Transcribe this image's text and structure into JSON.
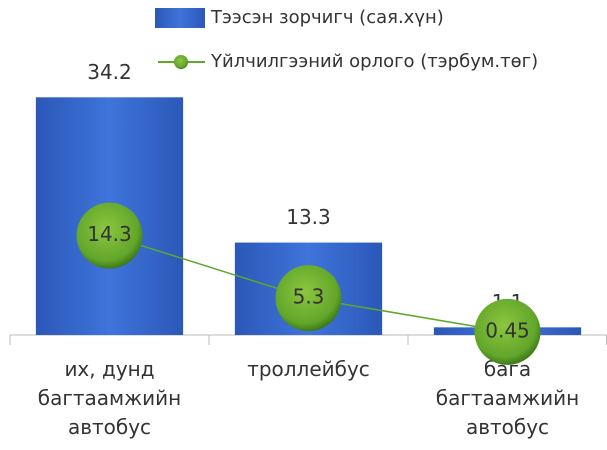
{
  "chart_data": {
    "type": "bar-line",
    "categories": [
      "их, дунд багтаамжийн автобус",
      "троллейбус",
      "бага багтаамжийн автобус"
    ],
    "series": [
      {
        "name": "Тээсэн зорчигч (сая.хүн)",
        "type": "bar",
        "color": "#3566cc",
        "values": [
          34.2,
          13.3,
          1.1
        ]
      },
      {
        "name": "Үйлчилгээний орлого (тэрбум.төг)",
        "type": "line",
        "color": "#5fa82a",
        "values": [
          14.3,
          5.3,
          0.45
        ]
      }
    ],
    "ylim": [
      0,
      40
    ],
    "legend": "top"
  }
}
